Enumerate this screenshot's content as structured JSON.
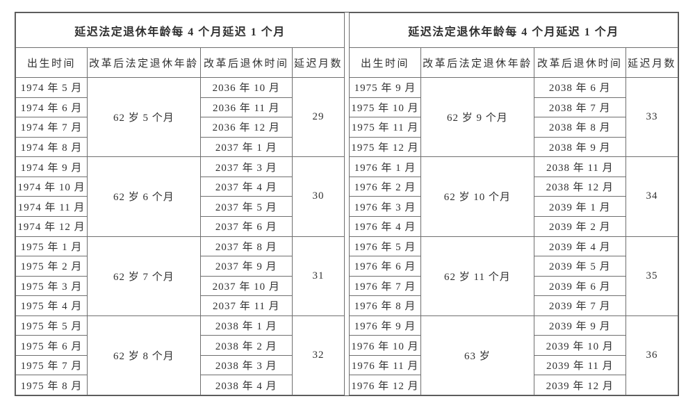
{
  "page": {
    "background_color": "#ffffff",
    "text_color": "#303030",
    "border_color": "#6e6e6e"
  },
  "tables": [
    {
      "title": "延迟法定退休年龄每 4 个月延迟 1 个月",
      "columns": [
        "出生时间",
        "改革后法定退休年龄",
        "改革后退休时间",
        "延迟月数"
      ],
      "groups": [
        {
          "birth_months": [
            "1974 年 5 月",
            "1974 年 6 月",
            "1974 年 7 月",
            "1974 年 8 月"
          ],
          "retirement_age": "62 岁 5 个月",
          "retirement_months": [
            "2036 年 10 月",
            "2036 年 11 月",
            "2036 年 12 月",
            "2037 年 1 月"
          ],
          "delay_months": "29"
        },
        {
          "birth_months": [
            "1974 年 9 月",
            "1974 年 10 月",
            "1974 年 11 月",
            "1974 年 12 月"
          ],
          "retirement_age": "62 岁 6 个月",
          "retirement_months": [
            "2037 年 3 月",
            "2037 年 4 月",
            "2037 年 5 月",
            "2037 年 6 月"
          ],
          "delay_months": "30"
        },
        {
          "birth_months": [
            "1975 年 1 月",
            "1975 年 2 月",
            "1975 年 3 月",
            "1975 年 4 月"
          ],
          "retirement_age": "62 岁 7 个月",
          "retirement_months": [
            "2037 年 8 月",
            "2037 年 9 月",
            "2037 年 10 月",
            "2037 年 11 月"
          ],
          "delay_months": "31"
        },
        {
          "birth_months": [
            "1975 年 5 月",
            "1975 年 6 月",
            "1975 年 7 月",
            "1975 年 8 月"
          ],
          "retirement_age": "62 岁 8 个月",
          "retirement_months": [
            "2038 年 1 月",
            "2038 年 2 月",
            "2038 年 3 月",
            "2038 年 4 月"
          ],
          "delay_months": "32"
        }
      ]
    },
    {
      "title": "延迟法定退休年龄每 4 个月延迟 1 个月",
      "columns": [
        "出生时间",
        "改革后法定退休年龄",
        "改革后退休时间",
        "延迟月数"
      ],
      "groups": [
        {
          "birth_months": [
            "1975 年 9 月",
            "1975 年 10 月",
            "1975 年 11 月",
            "1975 年 12 月"
          ],
          "retirement_age": "62 岁 9 个月",
          "retirement_months": [
            "2038 年 6 月",
            "2038 年 7 月",
            "2038 年 8 月",
            "2038 年 9 月"
          ],
          "delay_months": "33"
        },
        {
          "birth_months": [
            "1976 年 1 月",
            "1976 年 2 月",
            "1976 年 3 月",
            "1976 年 4 月"
          ],
          "retirement_age": "62 岁 10 个月",
          "retirement_months": [
            "2038 年 11 月",
            "2038 年 12 月",
            "2039 年 1 月",
            "2039 年 2 月"
          ],
          "delay_months": "34"
        },
        {
          "birth_months": [
            "1976 年 5 月",
            "1976 年 6 月",
            "1976 年 7 月",
            "1976 年 8 月"
          ],
          "retirement_age": "62 岁 11 个月",
          "retirement_months": [
            "2039 年 4 月",
            "2039 年 5 月",
            "2039 年 6 月",
            "2039 年 7 月"
          ],
          "delay_months": "35"
        },
        {
          "birth_months": [
            "1976 年 9 月",
            "1976 年 10 月",
            "1976 年 11 月",
            "1976 年 12 月"
          ],
          "retirement_age": "63 岁",
          "retirement_months": [
            "2039 年 9 月",
            "2039 年 10 月",
            "2039 年 11 月",
            "2039 年 12 月"
          ],
          "delay_months": "36"
        }
      ]
    }
  ]
}
